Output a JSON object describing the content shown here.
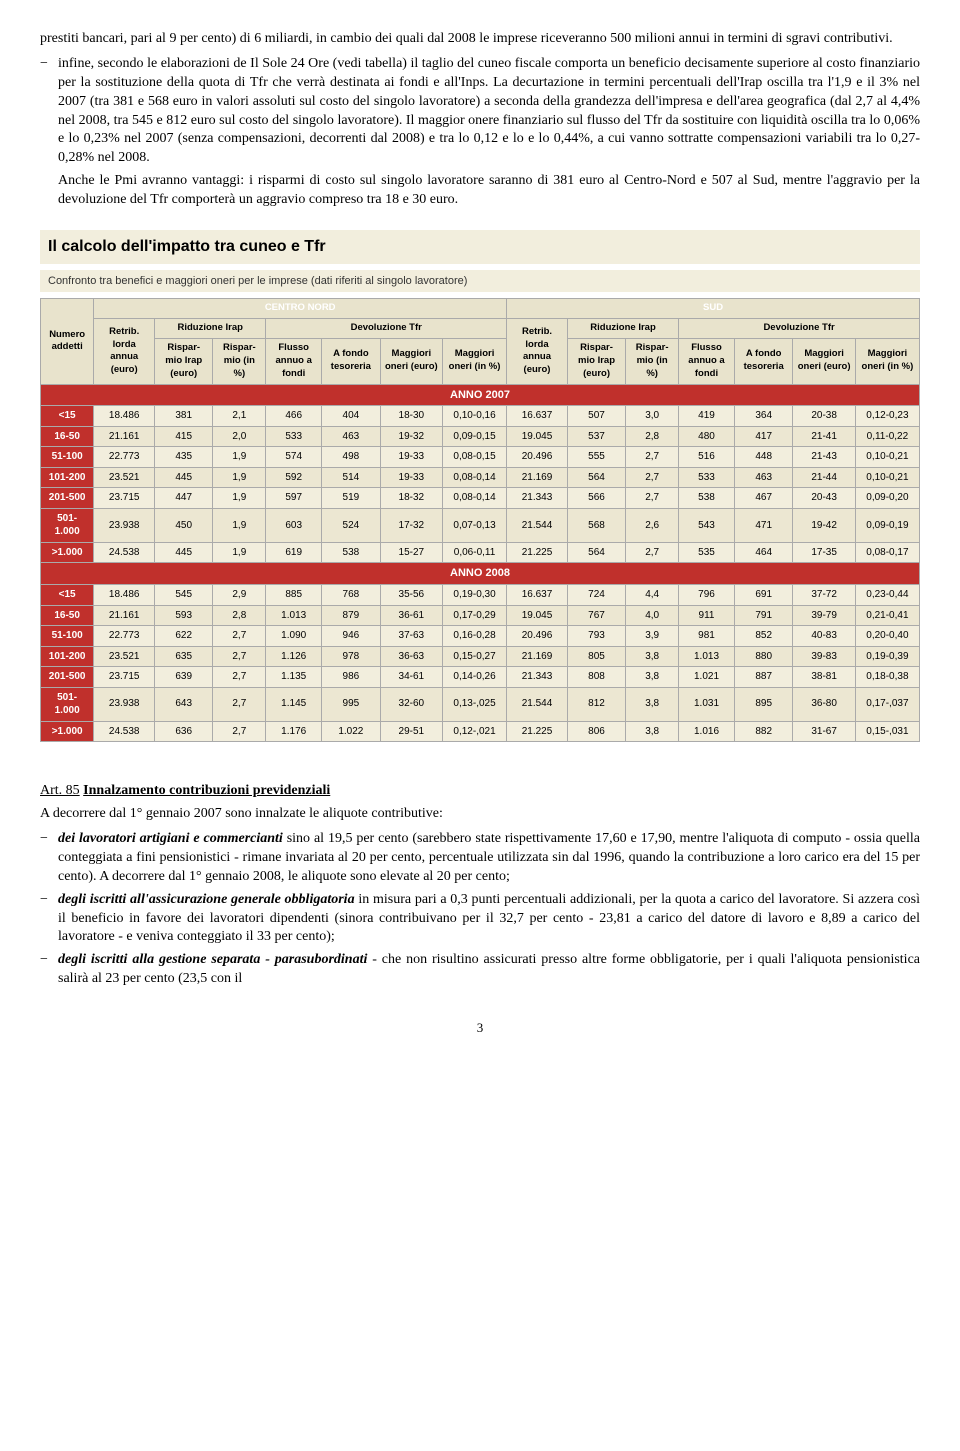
{
  "para1": "prestiti bancari, pari al 9 per cento) di 6 miliardi, in cambio dei quali dal 2008 le imprese riceveranno 500 milioni annui in termini di sgravi contributivi.",
  "para2": "infine, secondo le elaborazioni de Il Sole 24 Ore (vedi tabella) il taglio del cuneo fiscale comporta un beneficio decisamente superiore al costo finanziario per la sostituzione della quota di Tfr che verrà destinata ai fondi e all'Inps. La decurtazione in termini percentuali dell'Irap oscilla tra l'1,9 e il 3% nel 2007 (tra 381 e 568 euro in valori assoluti sul costo del singolo lavoratore) a seconda della grandezza dell'impresa e dell'area geografica (dal 2,7 al 4,4% nel 2008, tra 545 e 812 euro sul costo del singolo lavoratore). Il maggior onere finanziario sul flusso del Tfr da sostituire con liquidità oscilla tra lo 0,06% e lo 0,23% nel 2007 (senza compensazioni, decorrenti dal 2008) e tra lo 0,12 e lo e lo 0,44%, a cui vanno sottratte compensazioni variabili tra lo 0,27-0,28% nel 2008.",
  "para3": "Anche le Pmi avranno vantaggi: i risparmi di costo sul singolo lavoratore saranno di 381 euro al Centro-Nord e 507 al Sud, mentre l'aggravio per la devoluzione del Tfr comporterà un aggravio compreso tra 18 e 30 euro.",
  "table": {
    "title": "Il calcolo dell'impatto tra cuneo e Tfr",
    "subtitle": "Confronto tra benefici e maggiori oneri per le imprese (dati riferiti al singolo lavoratore)",
    "regions": [
      "CENTRO NORD",
      "SUD"
    ],
    "subgroups": [
      "Riduzione Irap",
      "Devoluzione Tfr"
    ],
    "rowhead_label": "Numero addetti",
    "cols": [
      "Retrib. lorda annua (euro)",
      "Rispar-mio Irap (euro)",
      "Rispar-mio (in %)",
      "Flusso annuo a fondi",
      "A fondo tesoreria",
      "Maggiori oneri (euro)",
      "Maggiori oneri (in %)"
    ],
    "year_labels": [
      "ANNO 2007",
      "ANNO 2008"
    ],
    "row_labels": [
      "<15",
      "16-50",
      "51-100",
      "101-200",
      "201-500",
      "501-1.000",
      ">1.000"
    ],
    "year2007": [
      [
        "18.486",
        "381",
        "2,1",
        "466",
        "404",
        "18-30",
        "0,10-0,16",
        "16.637",
        "507",
        "3,0",
        "419",
        "364",
        "20-38",
        "0,12-0,23"
      ],
      [
        "21.161",
        "415",
        "2,0",
        "533",
        "463",
        "19-32",
        "0,09-0,15",
        "19.045",
        "537",
        "2,8",
        "480",
        "417",
        "21-41",
        "0,11-0,22"
      ],
      [
        "22.773",
        "435",
        "1,9",
        "574",
        "498",
        "19-33",
        "0,08-0,15",
        "20.496",
        "555",
        "2,7",
        "516",
        "448",
        "21-43",
        "0,10-0,21"
      ],
      [
        "23.521",
        "445",
        "1,9",
        "592",
        "514",
        "19-33",
        "0,08-0,14",
        "21.169",
        "564",
        "2,7",
        "533",
        "463",
        "21-44",
        "0,10-0,21"
      ],
      [
        "23.715",
        "447",
        "1,9",
        "597",
        "519",
        "18-32",
        "0,08-0,14",
        "21.343",
        "566",
        "2,7",
        "538",
        "467",
        "20-43",
        "0,09-0,20"
      ],
      [
        "23.938",
        "450",
        "1,9",
        "603",
        "524",
        "17-32",
        "0,07-0,13",
        "21.544",
        "568",
        "2,6",
        "543",
        "471",
        "19-42",
        "0,09-0,19"
      ],
      [
        "24.538",
        "445",
        "1,9",
        "619",
        "538",
        "15-27",
        "0,06-0,11",
        "21.225",
        "564",
        "2,7",
        "535",
        "464",
        "17-35",
        "0,08-0,17"
      ]
    ],
    "year2008": [
      [
        "18.486",
        "545",
        "2,9",
        "885",
        "768",
        "35-56",
        "0,19-0,30",
        "16.637",
        "724",
        "4,4",
        "796",
        "691",
        "37-72",
        "0,23-0,44"
      ],
      [
        "21.161",
        "593",
        "2,8",
        "1.013",
        "879",
        "36-61",
        "0,17-0,29",
        "19.045",
        "767",
        "4,0",
        "911",
        "791",
        "39-79",
        "0,21-0,41"
      ],
      [
        "22.773",
        "622",
        "2,7",
        "1.090",
        "946",
        "37-63",
        "0,16-0,28",
        "20.496",
        "793",
        "3,9",
        "981",
        "852",
        "40-83",
        "0,20-0,40"
      ],
      [
        "23.521",
        "635",
        "2,7",
        "1.126",
        "978",
        "36-63",
        "0,15-0,27",
        "21.169",
        "805",
        "3,8",
        "1.013",
        "880",
        "39-83",
        "0,19-0,39"
      ],
      [
        "23.715",
        "639",
        "2,7",
        "1.135",
        "986",
        "34-61",
        "0,14-0,26",
        "21.343",
        "808",
        "3,8",
        "1.021",
        "887",
        "38-81",
        "0,18-0,38"
      ],
      [
        "23.938",
        "643",
        "2,7",
        "1.145",
        "995",
        "32-60",
        "0,13-,025",
        "21.544",
        "812",
        "3,8",
        "1.031",
        "895",
        "36-80",
        "0,17-,037"
      ],
      [
        "24.538",
        "636",
        "2,7",
        "1.176",
        "1.022",
        "29-51",
        "0,12-,021",
        "21.225",
        "806",
        "3,8",
        "1.016",
        "882",
        "31-67",
        "0,15-,031"
      ]
    ]
  },
  "art85": {
    "num": "Art. 85",
    "name": "Innalzamento contribuzioni previdenziali",
    "intro": "A decorrere dal 1° gennaio 2007 sono innalzate le aliquote contributive:",
    "b1_bold": "dei lavoratori artigiani e commercianti",
    "b1_rest": " sino al 19,5 per cento (sarebbero state rispettivamente 17,60 e 17,90, mentre l'aliquota di computo - ossia quella conteggiata a fini pensionistici - rimane invariata al 20 per cento, percentuale utilizzata sin dal 1996, quando la contribuzione a loro carico era del 15 per cento). A decorrere dal 1° gennaio 2008, le aliquote sono elevate al 20 per cento;",
    "b2_bold": "degli iscritti all'assicurazione generale obbligatoria",
    "b2_rest": " in misura pari a 0,3 punti percentuali addizionali, per la quota a carico del lavoratore. Si azzera così il beneficio in favore dei lavoratori dipendenti (sinora contribuivano per il 32,7 per cento - 23,81 a carico del datore di lavoro e 8,89 a carico del lavoratore - e veniva conteggiato il 33 per cento);",
    "b3_bold": "degli iscritti alla gestione separata - parasubordinati",
    "b3_rest": " - che non risultino assicurati presso altre forme obbligatorie, per i quali l'aliquota pensionistica salirà al 23 per cento (23,5 con il"
  },
  "pagenum": "3"
}
